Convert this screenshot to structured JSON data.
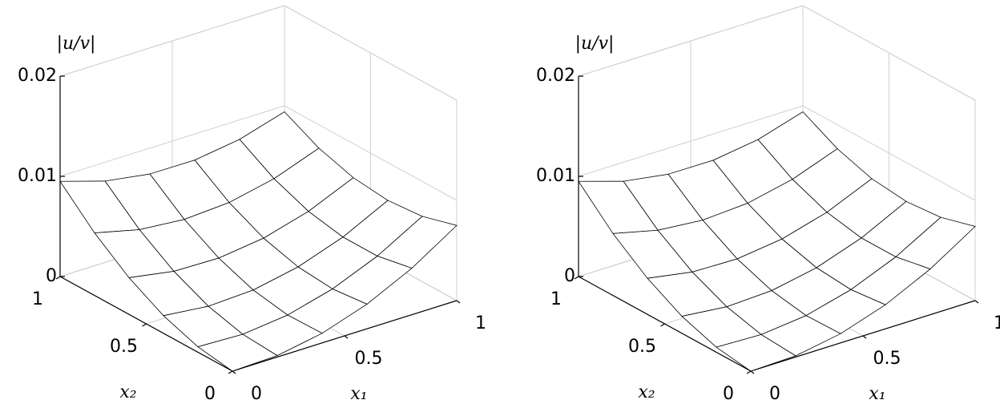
{
  "chart_data": [
    {
      "type": "surface",
      "x": [
        0,
        0.2,
        0.4,
        0.6,
        0.8,
        1
      ],
      "y": [
        0,
        0.2,
        0.4,
        0.6,
        0.8,
        1
      ],
      "z": [
        [
          0,
          0.00014,
          0.00096,
          0.00246,
          0.00464,
          0.0075
        ],
        [
          0.00054,
          0.00038,
          0.00089,
          0.00209,
          0.00396,
          0.00652
        ],
        [
          0.00176,
          0.00129,
          0.0015,
          0.0024,
          0.00397,
          0.00622
        ],
        [
          0.00366,
          0.00289,
          0.0028,
          0.00338,
          0.00465,
          0.0066
        ],
        [
          0.00624,
          0.00516,
          0.00477,
          0.00505,
          0.00602,
          0.00766
        ],
        [
          0.0095,
          0.00812,
          0.00742,
          0.0074,
          0.00806,
          0.0094
        ]
      ],
      "xlim": [
        0,
        1
      ],
      "ylim": [
        0,
        1
      ],
      "zlim": [
        0,
        0.02
      ],
      "xticks": [
        0,
        0.5,
        1
      ],
      "yticks": [
        0,
        0.5,
        1
      ],
      "zticks": [
        0,
        0.01,
        0.02
      ],
      "xlabel": "x₁",
      "ylabel": "x₂",
      "zlabel": "|u/v|",
      "grid": true,
      "edge_color": "#000000",
      "face_color": "#ffffff"
    },
    {
      "type": "surface",
      "x": [
        0,
        0.2,
        0.4,
        0.6,
        0.8,
        1
      ],
      "y": [
        0,
        0.2,
        0.4,
        0.6,
        0.8,
        1
      ],
      "z": [
        [
          0,
          0.00012,
          0.00092,
          0.0024,
          0.00456,
          0.0074
        ],
        [
          0.0005,
          0.00035,
          0.00084,
          0.00202,
          0.00388,
          0.00642
        ],
        [
          0.0017,
          0.00124,
          0.00144,
          0.00232,
          0.00388,
          0.00612
        ],
        [
          0.0036,
          0.00282,
          0.00272,
          0.0033,
          0.00456,
          0.0065
        ],
        [
          0.00618,
          0.0051,
          0.0047,
          0.00498,
          0.00596,
          0.0076
        ],
        [
          0.0095,
          0.0081,
          0.0074,
          0.00738,
          0.00804,
          0.0094
        ]
      ],
      "xlim": [
        0,
        1
      ],
      "ylim": [
        0,
        1
      ],
      "zlim": [
        0,
        0.02
      ],
      "xticks": [
        0,
        0.5,
        1
      ],
      "yticks": [
        0,
        0.5,
        1
      ],
      "zticks": [
        0,
        0.01,
        0.02
      ],
      "xlabel": "x₁",
      "ylabel": "x₂",
      "zlabel": "|u/v|",
      "grid": true,
      "edge_color": "#000000",
      "face_color": "#ffffff"
    }
  ]
}
